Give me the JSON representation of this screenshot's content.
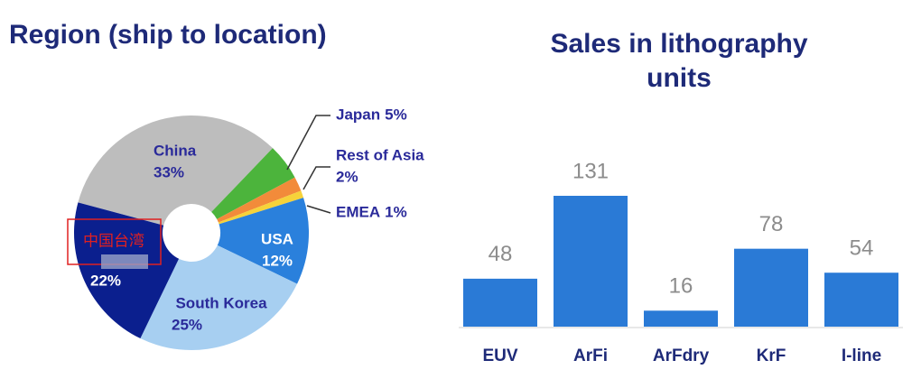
{
  "chart_data": [
    {
      "type": "pie",
      "title": "Region (ship to location)",
      "categories": [
        "China",
        "Japan",
        "Rest of Asia",
        "EMEA",
        "USA",
        "South Korea",
        "中国台湾"
      ],
      "values": [
        33,
        5,
        2,
        1,
        12,
        25,
        22
      ],
      "value_labels": [
        "33%",
        "5%",
        "2%",
        "1%",
        "12%",
        "25%",
        "22%"
      ],
      "colors": [
        "#bdbdbd",
        "#4cb43c",
        "#f28b3a",
        "#f6d23a",
        "#2a80dc",
        "#a7cff1",
        "#0b1f8e"
      ]
    },
    {
      "type": "bar",
      "title": "Sales in lithography units",
      "categories": [
        "EUV",
        "ArFi",
        "ArFdry",
        "KrF",
        "I-line"
      ],
      "values": [
        48,
        131,
        16,
        78,
        54
      ],
      "color": "#2a7ad6"
    }
  ]
}
